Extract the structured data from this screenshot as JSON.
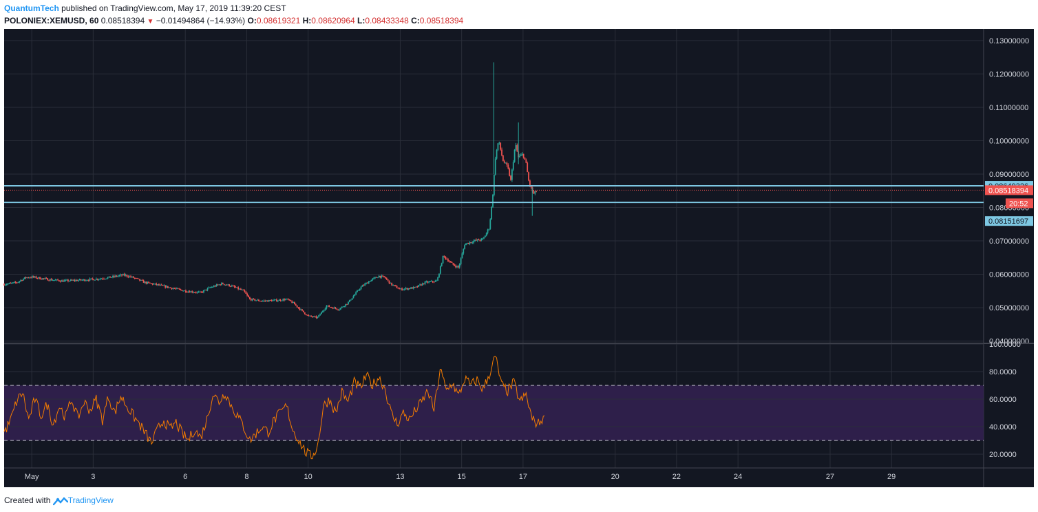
{
  "header": {
    "author": "QuantumTech",
    "published": "published on TradingView.com, May 17, 2019 11:39:20 CEST",
    "symbol": "POLONIEX:XEMUSD, 60",
    "last": "0.08518394",
    "change": "−0.01494864 (−14.93%)",
    "o_label": "O:",
    "o_value": "0.08619321",
    "h_label": "H:",
    "h_value": "0.08620964",
    "l_label": "L:",
    "l_value": "0.08433348",
    "c_label": "C:",
    "c_value": "0.08518394"
  },
  "footer": {
    "created_with": "Created with",
    "brand": "TradingView"
  },
  "colors": {
    "background": "#131722",
    "grid": "#2a2e39",
    "up": "#26a69a",
    "down": "#ef5350",
    "rsi_line": "#f57c00",
    "rsi_band": "#2e1f4a",
    "hline": "#7ec8e3",
    "price_tag": "#ef5350",
    "axis_text": "#d1d4dc"
  },
  "chart_data": {
    "type": "candlestick",
    "symbol": "POLONIEX:XEMUSD",
    "interval": "60",
    "x_ticks": [
      "May",
      "3",
      "6",
      "8",
      "10",
      "13",
      "15",
      "17",
      "20",
      "22",
      "24",
      "27",
      "29"
    ],
    "x_tick_days": [
      1,
      3,
      6,
      8,
      10,
      13,
      15,
      17,
      20,
      22,
      24,
      27,
      29
    ],
    "x_range_days": [
      0.1,
      32.0
    ],
    "price_axis": {
      "ticks": [
        "0.13000000",
        "0.12000000",
        "0.11000000",
        "0.10000000",
        "0.09000000",
        "0.08000000",
        "0.07000000",
        "0.06000000",
        "0.05000000",
        "0.04000000"
      ],
      "range": [
        0.0395,
        0.1335
      ]
    },
    "horizontal_lines": [
      {
        "value": 0.08649326,
        "label": "0.08649326"
      },
      {
        "value": 0.08151697,
        "label": "0.08151697"
      }
    ],
    "last_price": {
      "value": 0.08518394,
      "label": "0.08518394",
      "countdown": "20:52"
    },
    "price_path": [
      {
        "d": 0.1,
        "p": 0.057
      },
      {
        "d": 0.5,
        "p": 0.0575
      },
      {
        "d": 0.8,
        "p": 0.059
      },
      {
        "d": 1.0,
        "p": 0.0592
      },
      {
        "d": 1.5,
        "p": 0.0585
      },
      {
        "d": 2.0,
        "p": 0.058
      },
      {
        "d": 2.5,
        "p": 0.0582
      },
      {
        "d": 3.0,
        "p": 0.0585
      },
      {
        "d": 3.5,
        "p": 0.059
      },
      {
        "d": 4.0,
        "p": 0.0598
      },
      {
        "d": 4.3,
        "p": 0.059
      },
      {
        "d": 4.7,
        "p": 0.0575
      },
      {
        "d": 5.0,
        "p": 0.057
      },
      {
        "d": 5.5,
        "p": 0.056
      },
      {
        "d": 6.0,
        "p": 0.055
      },
      {
        "d": 6.5,
        "p": 0.0545
      },
      {
        "d": 6.8,
        "p": 0.056
      },
      {
        "d": 7.2,
        "p": 0.0572
      },
      {
        "d": 7.5,
        "p": 0.0565
      },
      {
        "d": 7.9,
        "p": 0.055
      },
      {
        "d": 8.1,
        "p": 0.0525
      },
      {
        "d": 8.5,
        "p": 0.052
      },
      {
        "d": 9.0,
        "p": 0.0522
      },
      {
        "d": 9.3,
        "p": 0.0525
      },
      {
        "d": 9.5,
        "p": 0.0515
      },
      {
        "d": 9.8,
        "p": 0.049
      },
      {
        "d": 10.0,
        "p": 0.0475
      },
      {
        "d": 10.3,
        "p": 0.047
      },
      {
        "d": 10.6,
        "p": 0.0505
      },
      {
        "d": 11.0,
        "p": 0.0495
      },
      {
        "d": 11.3,
        "p": 0.0515
      },
      {
        "d": 11.7,
        "p": 0.056
      },
      {
        "d": 12.0,
        "p": 0.058
      },
      {
        "d": 12.3,
        "p": 0.0595
      },
      {
        "d": 12.5,
        "p": 0.059
      },
      {
        "d": 12.7,
        "p": 0.057
      },
      {
        "d": 13.0,
        "p": 0.0555
      },
      {
        "d": 13.5,
        "p": 0.056
      },
      {
        "d": 13.8,
        "p": 0.0575
      },
      {
        "d": 14.2,
        "p": 0.058
      },
      {
        "d": 14.4,
        "p": 0.0655
      },
      {
        "d": 14.7,
        "p": 0.063
      },
      {
        "d": 14.9,
        "p": 0.062
      },
      {
        "d": 15.1,
        "p": 0.069
      },
      {
        "d": 15.4,
        "p": 0.07
      },
      {
        "d": 15.7,
        "p": 0.0705
      },
      {
        "d": 15.9,
        "p": 0.074
      },
      {
        "d": 16.0,
        "p": 0.082
      },
      {
        "d": 16.1,
        "p": 0.095
      },
      {
        "d": 16.2,
        "p": 0.1
      },
      {
        "d": 16.35,
        "p": 0.094
      },
      {
        "d": 16.5,
        "p": 0.092
      },
      {
        "d": 16.6,
        "p": 0.088
      },
      {
        "d": 16.75,
        "p": 0.099
      },
      {
        "d": 16.85,
        "p": 0.095
      },
      {
        "d": 17.0,
        "p": 0.096
      },
      {
        "d": 17.1,
        "p": 0.093
      },
      {
        "d": 17.2,
        "p": 0.087
      },
      {
        "d": 17.35,
        "p": 0.084
      },
      {
        "d": 17.45,
        "p": 0.0852
      }
    ],
    "wick_extremes": [
      {
        "d": 16.05,
        "high": 0.1235,
        "low": 0.09
      },
      {
        "d": 16.85,
        "high": 0.1055,
        "low": 0.093
      },
      {
        "d": 17.3,
        "high": 0.086,
        "low": 0.0775
      }
    ],
    "rsi": {
      "axis_ticks": [
        "100.0000",
        "80.0000",
        "60.0000",
        "40.0000",
        "20.0000"
      ],
      "range": [
        10,
        100
      ],
      "overbought": 70,
      "oversold": 30,
      "path": [
        {
          "d": 0.1,
          "v": 36
        },
        {
          "d": 0.3,
          "v": 44
        },
        {
          "d": 0.5,
          "v": 58
        },
        {
          "d": 0.7,
          "v": 65
        },
        {
          "d": 0.9,
          "v": 45
        },
        {
          "d": 1.1,
          "v": 60
        },
        {
          "d": 1.3,
          "v": 48
        },
        {
          "d": 1.5,
          "v": 56
        },
        {
          "d": 1.7,
          "v": 42
        },
        {
          "d": 1.9,
          "v": 55
        },
        {
          "d": 2.1,
          "v": 47
        },
        {
          "d": 2.3,
          "v": 60
        },
        {
          "d": 2.5,
          "v": 46
        },
        {
          "d": 2.7,
          "v": 58
        },
        {
          "d": 2.9,
          "v": 52
        },
        {
          "d": 3.1,
          "v": 60
        },
        {
          "d": 3.3,
          "v": 45
        },
        {
          "d": 3.5,
          "v": 62
        },
        {
          "d": 3.7,
          "v": 50
        },
        {
          "d": 3.9,
          "v": 62
        },
        {
          "d": 4.1,
          "v": 55
        },
        {
          "d": 4.3,
          "v": 48
        },
        {
          "d": 4.5,
          "v": 42
        },
        {
          "d": 4.7,
          "v": 35
        },
        {
          "d": 4.9,
          "v": 28
        },
        {
          "d": 5.1,
          "v": 38
        },
        {
          "d": 5.3,
          "v": 45
        },
        {
          "d": 5.5,
          "v": 38
        },
        {
          "d": 5.7,
          "v": 43
        },
        {
          "d": 5.9,
          "v": 35
        },
        {
          "d": 6.1,
          "v": 30
        },
        {
          "d": 6.3,
          "v": 38
        },
        {
          "d": 6.5,
          "v": 32
        },
        {
          "d": 6.7,
          "v": 45
        },
        {
          "d": 6.9,
          "v": 64
        },
        {
          "d": 7.1,
          "v": 58
        },
        {
          "d": 7.3,
          "v": 65
        },
        {
          "d": 7.5,
          "v": 55
        },
        {
          "d": 7.7,
          "v": 48
        },
        {
          "d": 7.9,
          "v": 40
        },
        {
          "d": 8.1,
          "v": 30
        },
        {
          "d": 8.3,
          "v": 35
        },
        {
          "d": 8.5,
          "v": 40
        },
        {
          "d": 8.7,
          "v": 36
        },
        {
          "d": 8.9,
          "v": 45
        },
        {
          "d": 9.1,
          "v": 50
        },
        {
          "d": 9.3,
          "v": 55
        },
        {
          "d": 9.5,
          "v": 38
        },
        {
          "d": 9.7,
          "v": 30
        },
        {
          "d": 9.9,
          "v": 22
        },
        {
          "d": 10.1,
          "v": 18
        },
        {
          "d": 10.3,
          "v": 25
        },
        {
          "d": 10.5,
          "v": 55
        },
        {
          "d": 10.7,
          "v": 60
        },
        {
          "d": 10.9,
          "v": 50
        },
        {
          "d": 11.1,
          "v": 65
        },
        {
          "d": 11.3,
          "v": 58
        },
        {
          "d": 11.5,
          "v": 72
        },
        {
          "d": 11.7,
          "v": 68
        },
        {
          "d": 11.9,
          "v": 77
        },
        {
          "d": 12.1,
          "v": 70
        },
        {
          "d": 12.3,
          "v": 76
        },
        {
          "d": 12.5,
          "v": 68
        },
        {
          "d": 12.7,
          "v": 50
        },
        {
          "d": 12.9,
          "v": 42
        },
        {
          "d": 13.1,
          "v": 50
        },
        {
          "d": 13.3,
          "v": 45
        },
        {
          "d": 13.5,
          "v": 52
        },
        {
          "d": 13.7,
          "v": 58
        },
        {
          "d": 13.9,
          "v": 66
        },
        {
          "d": 14.1,
          "v": 52
        },
        {
          "d": 14.3,
          "v": 82
        },
        {
          "d": 14.5,
          "v": 66
        },
        {
          "d": 14.7,
          "v": 72
        },
        {
          "d": 14.9,
          "v": 62
        },
        {
          "d": 15.1,
          "v": 75
        },
        {
          "d": 15.3,
          "v": 70
        },
        {
          "d": 15.5,
          "v": 74
        },
        {
          "d": 15.7,
          "v": 67
        },
        {
          "d": 15.9,
          "v": 78
        },
        {
          "d": 16.1,
          "v": 91
        },
        {
          "d": 16.3,
          "v": 70
        },
        {
          "d": 16.5,
          "v": 66
        },
        {
          "d": 16.7,
          "v": 72
        },
        {
          "d": 16.9,
          "v": 58
        },
        {
          "d": 17.1,
          "v": 63
        },
        {
          "d": 17.3,
          "v": 45
        },
        {
          "d": 17.5,
          "v": 42
        },
        {
          "d": 17.7,
          "v": 48
        }
      ]
    }
  }
}
